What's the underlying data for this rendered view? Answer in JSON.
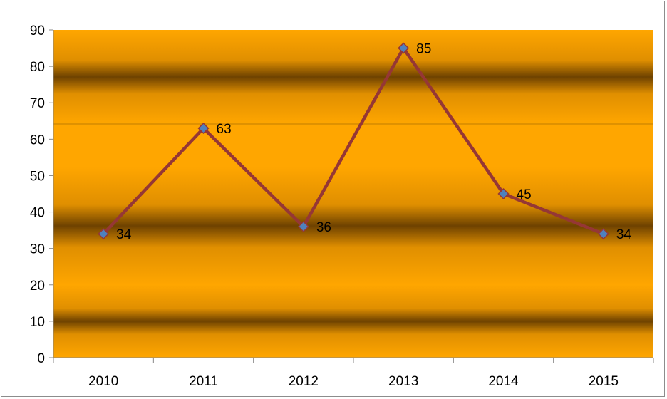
{
  "chart_data": {
    "type": "line",
    "title": "",
    "xlabel": "",
    "ylabel": "",
    "categories": [
      "2010",
      "2011",
      "2012",
      "2013",
      "2014",
      "2015"
    ],
    "series": [
      {
        "values": [
          34,
          63,
          36,
          85,
          45,
          34
        ],
        "data_labels": [
          "34",
          "63",
          "36",
          "85",
          "45",
          "34"
        ]
      }
    ],
    "ylim": [
      0,
      90
    ],
    "yticks": [
      "0",
      "10",
      "20",
      "30",
      "40",
      "50",
      "60",
      "70",
      "80",
      "90"
    ],
    "grid": false,
    "legend": "none",
    "colors": {
      "line": "#953735",
      "marker_fill": "#4f81bd",
      "marker_edge": "#953735",
      "plot_light": "#ffa600",
      "plot_dark": "#6e4200",
      "axis": "#878787"
    }
  }
}
